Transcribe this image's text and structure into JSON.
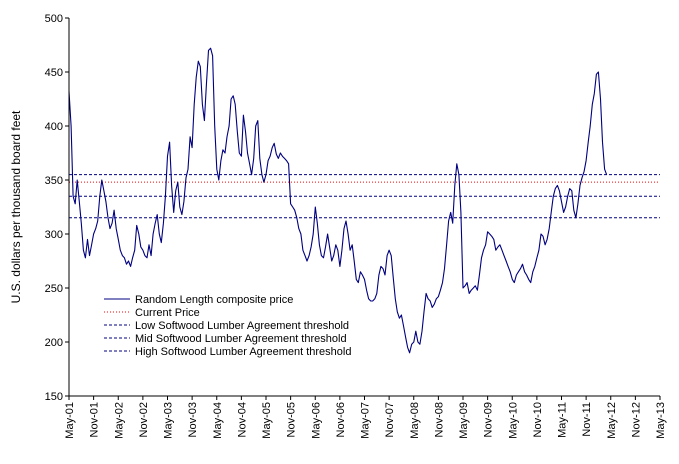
{
  "chart_data": {
    "type": "line",
    "ylabel": "U.S. dollars per thousand board feet",
    "ylim": [
      150,
      500
    ],
    "yticks": [
      150,
      200,
      250,
      300,
      350,
      400,
      450,
      500
    ],
    "xlim": [
      0,
      144
    ],
    "xticks": [
      {
        "label": "May-01",
        "x": 0
      },
      {
        "label": "Nov-01",
        "x": 6
      },
      {
        "label": "May-02",
        "x": 12
      },
      {
        "label": "Nov-02",
        "x": 18
      },
      {
        "label": "May-03",
        "x": 24
      },
      {
        "label": "Nov-03",
        "x": 30
      },
      {
        "label": "May-04",
        "x": 36
      },
      {
        "label": "Nov-04",
        "x": 42
      },
      {
        "label": "May-05",
        "x": 48
      },
      {
        "label": "Nov-05",
        "x": 54
      },
      {
        "label": "May-06",
        "x": 60
      },
      {
        "label": "Nov-06",
        "x": 66
      },
      {
        "label": "May-07",
        "x": 72
      },
      {
        "label": "Nov-07",
        "x": 78
      },
      {
        "label": "May-08",
        "x": 84
      },
      {
        "label": "Nov-08",
        "x": 90
      },
      {
        "label": "May-09",
        "x": 96
      },
      {
        "label": "Nov-09",
        "x": 102
      },
      {
        "label": "May-10",
        "x": 108
      },
      {
        "label": "Nov-10",
        "x": 114
      },
      {
        "label": "May-11",
        "x": 120
      },
      {
        "label": "Nov-11",
        "x": 126
      },
      {
        "label": "May-12",
        "x": 132
      },
      {
        "label": "Nov-12",
        "x": 138
      },
      {
        "label": "May-13",
        "x": 144
      }
    ],
    "legend": [
      {
        "label": "Random Length composite price",
        "style": "solid",
        "color": "#000080"
      },
      {
        "label": "Current Price",
        "style": "dotted",
        "color": "#ff0000"
      },
      {
        "label": "Low Softwood Lumber Agreement threshold",
        "style": "dashed",
        "color": "#000080"
      },
      {
        "label": "Mid Softwood Lumber Agreement  threshold",
        "style": "dashed",
        "color": "#000080"
      },
      {
        "label": "High Softwood Lumber Agreement  threshold",
        "style": "dashed",
        "color": "#000080"
      }
    ],
    "thresholds": {
      "low": 315,
      "mid": 335,
      "high": 355
    },
    "current_price": 348,
    "series": [
      {
        "color": "#000080",
        "points": [
          [
            0,
            432
          ],
          [
            0.5,
            400
          ],
          [
            1,
            335
          ],
          [
            1.5,
            328
          ],
          [
            2,
            350
          ],
          [
            2.5,
            330
          ],
          [
            3,
            310
          ],
          [
            3.5,
            285
          ],
          [
            4,
            278
          ],
          [
            4.5,
            295
          ],
          [
            5,
            280
          ],
          [
            5.5,
            290
          ],
          [
            6,
            300
          ],
          [
            6.5,
            305
          ],
          [
            7,
            312
          ],
          [
            7.5,
            335
          ],
          [
            8,
            350
          ],
          [
            8.5,
            340
          ],
          [
            9,
            330
          ],
          [
            9.5,
            315
          ],
          [
            10,
            305
          ],
          [
            10.5,
            310
          ],
          [
            11,
            322
          ],
          [
            11.5,
            305
          ],
          [
            12,
            295
          ],
          [
            12.5,
            285
          ],
          [
            13,
            280
          ],
          [
            13.5,
            278
          ],
          [
            14,
            272
          ],
          [
            14.5,
            275
          ],
          [
            15,
            270
          ],
          [
            15.5,
            278
          ],
          [
            16,
            285
          ],
          [
            16.5,
            308
          ],
          [
            17,
            300
          ],
          [
            17.5,
            288
          ],
          [
            18,
            285
          ],
          [
            18.5,
            280
          ],
          [
            19,
            278
          ],
          [
            19.5,
            290
          ],
          [
            20,
            280
          ],
          [
            20.5,
            300
          ],
          [
            21,
            310
          ],
          [
            21.5,
            318
          ],
          [
            22,
            300
          ],
          [
            22.5,
            292
          ],
          [
            23,
            310
          ],
          [
            23.5,
            335
          ],
          [
            24,
            372
          ],
          [
            24.5,
            385
          ],
          [
            25,
            345
          ],
          [
            25.5,
            320
          ],
          [
            26,
            340
          ],
          [
            26.5,
            348
          ],
          [
            27,
            325
          ],
          [
            27.5,
            318
          ],
          [
            28,
            330
          ],
          [
            28.5,
            352
          ],
          [
            29,
            360
          ],
          [
            29.5,
            390
          ],
          [
            30,
            380
          ],
          [
            30.5,
            420
          ],
          [
            31,
            445
          ],
          [
            31.5,
            460
          ],
          [
            32,
            455
          ],
          [
            32.5,
            420
          ],
          [
            33,
            405
          ],
          [
            33.5,
            440
          ],
          [
            34,
            470
          ],
          [
            34.5,
            472
          ],
          [
            35,
            465
          ],
          [
            35.5,
            400
          ],
          [
            36,
            360
          ],
          [
            36.5,
            350
          ],
          [
            37,
            368
          ],
          [
            37.5,
            378
          ],
          [
            38,
            375
          ],
          [
            38.5,
            390
          ],
          [
            39,
            400
          ],
          [
            39.5,
            425
          ],
          [
            40,
            428
          ],
          [
            40.5,
            420
          ],
          [
            41,
            395
          ],
          [
            41.5,
            375
          ],
          [
            42,
            372
          ],
          [
            42.5,
            410
          ],
          [
            43,
            395
          ],
          [
            43.5,
            375
          ],
          [
            44,
            365
          ],
          [
            44.5,
            355
          ],
          [
            45,
            370
          ],
          [
            45.5,
            400
          ],
          [
            46,
            405
          ],
          [
            46.5,
            370
          ],
          [
            47,
            355
          ],
          [
            47.5,
            348
          ],
          [
            48,
            355
          ],
          [
            48.5,
            368
          ],
          [
            49,
            372
          ],
          [
            49.5,
            380
          ],
          [
            50,
            384
          ],
          [
            50.5,
            374
          ],
          [
            51,
            370
          ],
          [
            51.5,
            375
          ],
          [
            52,
            372
          ],
          [
            52.5,
            370
          ],
          [
            53,
            368
          ],
          [
            53.5,
            365
          ],
          [
            54,
            328
          ],
          [
            54.5,
            325
          ],
          [
            55,
            322
          ],
          [
            55.5,
            315
          ],
          [
            56,
            305
          ],
          [
            56.5,
            300
          ],
          [
            57,
            285
          ],
          [
            57.5,
            280
          ],
          [
            58,
            275
          ],
          [
            58.5,
            280
          ],
          [
            59,
            288
          ],
          [
            59.5,
            300
          ],
          [
            60,
            325
          ],
          [
            60.5,
            310
          ],
          [
            61,
            290
          ],
          [
            61.5,
            280
          ],
          [
            62,
            278
          ],
          [
            62.5,
            288
          ],
          [
            63,
            300
          ],
          [
            63.5,
            288
          ],
          [
            64,
            275
          ],
          [
            64.5,
            280
          ],
          [
            65,
            290
          ],
          [
            65.5,
            285
          ],
          [
            66,
            270
          ],
          [
            66.5,
            285
          ],
          [
            67,
            305
          ],
          [
            67.5,
            312
          ],
          [
            68,
            300
          ],
          [
            68.5,
            285
          ],
          [
            69,
            290
          ],
          [
            69.5,
            275
          ],
          [
            70,
            258
          ],
          [
            70.5,
            255
          ],
          [
            71,
            265
          ],
          [
            71.5,
            262
          ],
          [
            72,
            258
          ],
          [
            72.5,
            248
          ],
          [
            73,
            240
          ],
          [
            73.5,
            238
          ],
          [
            74,
            238
          ],
          [
            74.5,
            240
          ],
          [
            75,
            245
          ],
          [
            75.5,
            262
          ],
          [
            76,
            270
          ],
          [
            76.5,
            268
          ],
          [
            77,
            262
          ],
          [
            77.5,
            280
          ],
          [
            78,
            285
          ],
          [
            78.5,
            280
          ],
          [
            79,
            260
          ],
          [
            79.5,
            240
          ],
          [
            80,
            228
          ],
          [
            80.5,
            222
          ],
          [
            81,
            225
          ],
          [
            81.5,
            215
          ],
          [
            82,
            205
          ],
          [
            82.5,
            195
          ],
          [
            83,
            190
          ],
          [
            83.5,
            198
          ],
          [
            84,
            200
          ],
          [
            84.5,
            210
          ],
          [
            85,
            200
          ],
          [
            85.5,
            198
          ],
          [
            86,
            210
          ],
          [
            86.5,
            228
          ],
          [
            87,
            245
          ],
          [
            87.5,
            240
          ],
          [
            88,
            238
          ],
          [
            88.5,
            232
          ],
          [
            89,
            235
          ],
          [
            89.5,
            240
          ],
          [
            90,
            242
          ],
          [
            90.5,
            248
          ],
          [
            91,
            255
          ],
          [
            91.5,
            268
          ],
          [
            92,
            290
          ],
          [
            92.5,
            312
          ],
          [
            93,
            320
          ],
          [
            93.5,
            310
          ],
          [
            94,
            345
          ],
          [
            94.5,
            365
          ],
          [
            95,
            355
          ],
          [
            95.5,
            320
          ],
          [
            96,
            250
          ],
          [
            96.5,
            252
          ],
          [
            97,
            255
          ],
          [
            97.5,
            245
          ],
          [
            98,
            248
          ],
          [
            98.5,
            250
          ],
          [
            99,
            252
          ],
          [
            99.5,
            248
          ],
          [
            100,
            262
          ],
          [
            100.5,
            278
          ],
          [
            101,
            285
          ],
          [
            101.5,
            290
          ],
          [
            102,
            302
          ],
          [
            102.5,
            300
          ],
          [
            103,
            298
          ],
          [
            103.5,
            295
          ],
          [
            104,
            285
          ],
          [
            104.5,
            288
          ],
          [
            105,
            290
          ],
          [
            105.5,
            285
          ],
          [
            106,
            280
          ],
          [
            106.5,
            275
          ],
          [
            107,
            270
          ],
          [
            107.5,
            265
          ],
          [
            108,
            258
          ],
          [
            108.5,
            255
          ],
          [
            109,
            262
          ],
          [
            109.5,
            265
          ],
          [
            110,
            268
          ],
          [
            110.5,
            272
          ],
          [
            111,
            265
          ],
          [
            111.5,
            262
          ],
          [
            112,
            258
          ],
          [
            112.5,
            255
          ],
          [
            113,
            265
          ],
          [
            113.5,
            270
          ],
          [
            114,
            278
          ],
          [
            114.5,
            285
          ],
          [
            115,
            300
          ],
          [
            115.5,
            298
          ],
          [
            116,
            290
          ],
          [
            116.5,
            295
          ],
          [
            117,
            305
          ],
          [
            117.5,
            320
          ],
          [
            118,
            335
          ],
          [
            118.5,
            342
          ],
          [
            119,
            345
          ],
          [
            119.5,
            340
          ],
          [
            120,
            330
          ],
          [
            120.5,
            320
          ],
          [
            121,
            325
          ],
          [
            121.5,
            335
          ],
          [
            122,
            342
          ],
          [
            122.5,
            340
          ],
          [
            123,
            322
          ],
          [
            123.5,
            315
          ],
          [
            124,
            328
          ],
          [
            124.5,
            345
          ],
          [
            125,
            352
          ],
          [
            125.5,
            358
          ],
          [
            126,
            368
          ],
          [
            126.5,
            385
          ],
          [
            127,
            400
          ],
          [
            127.5,
            420
          ],
          [
            128,
            430
          ],
          [
            128.5,
            448
          ],
          [
            129,
            450
          ],
          [
            129.5,
            425
          ],
          [
            130,
            385
          ],
          [
            130.5,
            360
          ],
          [
            131,
            355
          ]
        ]
      }
    ]
  }
}
